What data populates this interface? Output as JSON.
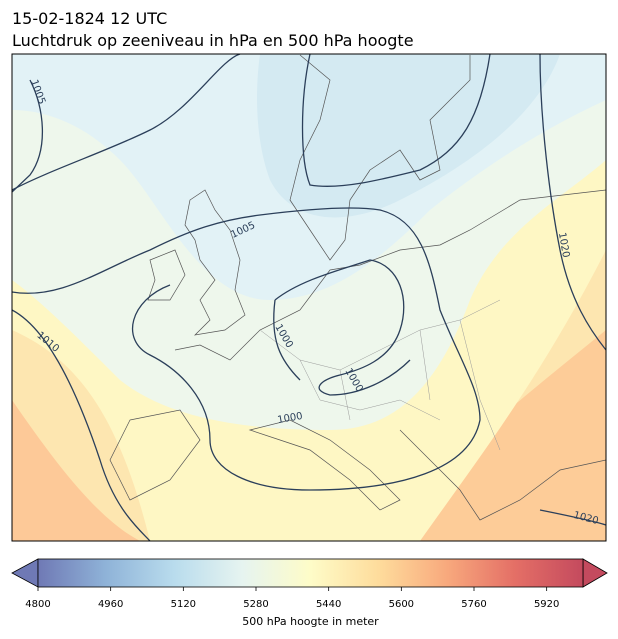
{
  "title": "15-02-1824 12 UTC",
  "subtitle": "Luchtdruk op zeeniveau in hPa en 500 hPa hoogte",
  "contour_labels": [
    1005,
    1005,
    1010,
    1000,
    1000,
    1000,
    1020,
    1020
  ],
  "colorbar": {
    "label": "500 hPa hoogte in meter",
    "range": [
      4800,
      6000
    ],
    "ticks": [
      4800,
      4960,
      5120,
      5280,
      5440,
      5600,
      5760,
      5920
    ],
    "colors": [
      "#6f79b5",
      "#8fb3d8",
      "#b9dced",
      "#e6f4f0",
      "#fefcc8",
      "#fedc9c",
      "#f8a97d",
      "#e46f66",
      "#c44a5e"
    ]
  }
}
